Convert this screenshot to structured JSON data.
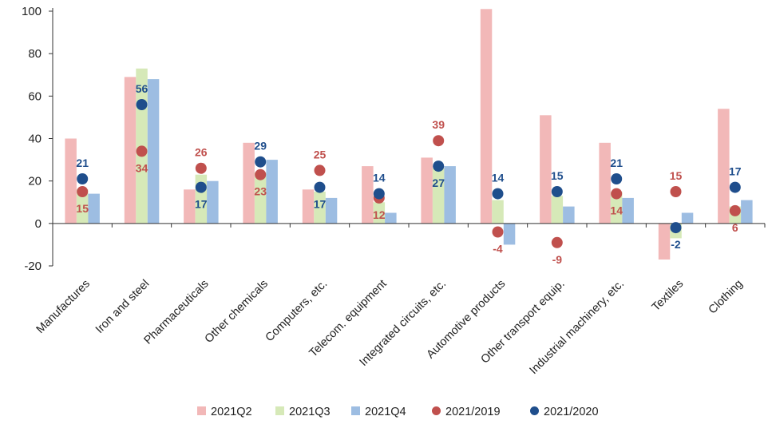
{
  "chart_data": {
    "type": "bar",
    "categories": [
      "Manufactures",
      "Iron and steel",
      "Pharmaceuticals",
      "Other chemicals",
      "Computers, etc.",
      "Telecom. equipment",
      "Integrated circuits, etc.",
      "Automotive products",
      "Other transport equip.",
      "Industrial machinery, etc.",
      "Textiles",
      "Clothing"
    ],
    "series": [
      {
        "name": "2021Q2",
        "kind": "bar",
        "color": "#f2b8b8",
        "values": [
          40,
          69,
          16,
          38,
          16,
          27,
          31,
          101,
          51,
          38,
          -17,
          54
        ]
      },
      {
        "name": "2021Q3",
        "kind": "bar",
        "color": "#d6e9b8",
        "values": [
          16,
          73,
          23,
          24,
          15,
          10,
          26,
          11,
          13,
          15,
          -7,
          8
        ]
      },
      {
        "name": "2021Q4",
        "kind": "bar",
        "color": "#9dbde2",
        "values": [
          14,
          68,
          20,
          30,
          12,
          5,
          27,
          -10,
          8,
          12,
          5,
          11
        ]
      },
      {
        "name": "2021/2019",
        "kind": "dot",
        "color": "#c0504d",
        "values": [
          15,
          34,
          26,
          23,
          25,
          12,
          39,
          -4,
          -9,
          14,
          15,
          6
        ]
      },
      {
        "name": "2021/2020",
        "kind": "dot",
        "color": "#1f4e8c",
        "values": [
          21,
          56,
          17,
          29,
          17,
          14,
          27,
          14,
          15,
          21,
          -2,
          17
        ]
      }
    ],
    "ylim": [
      -20,
      100
    ],
    "yticks": [
      "-20",
      "0",
      "20",
      "40",
      "60",
      "80",
      "100"
    ],
    "xlabel": "",
    "ylabel": "",
    "grid": false,
    "legend_position": "bottom",
    "data_labels": {
      "2021/2019": [
        {
          "text": "15",
          "placement": "below"
        },
        {
          "text": "34",
          "placement": "below"
        },
        {
          "text": "26",
          "placement": "above"
        },
        {
          "text": "23",
          "placement": "below"
        },
        {
          "text": "25",
          "placement": "above"
        },
        {
          "text": "12",
          "placement": "below"
        },
        {
          "text": "39",
          "placement": "above"
        },
        {
          "text": "-4",
          "placement": "below"
        },
        {
          "text": "-9",
          "placement": "below"
        },
        {
          "text": "14",
          "placement": "below"
        },
        {
          "text": "15",
          "placement": "above"
        },
        {
          "text": "6",
          "placement": "below"
        }
      ],
      "2021/2020": [
        {
          "text": "21",
          "placement": "above"
        },
        {
          "text": "56",
          "placement": "above"
        },
        {
          "text": "17",
          "placement": "below"
        },
        {
          "text": "29",
          "placement": "above"
        },
        {
          "text": "17",
          "placement": "below"
        },
        {
          "text": "14",
          "placement": "above"
        },
        {
          "text": "27",
          "placement": "below"
        },
        {
          "text": "14",
          "placement": "above"
        },
        {
          "text": "15",
          "placement": "above"
        },
        {
          "text": "21",
          "placement": "above"
        },
        {
          "text": "-2",
          "placement": "below"
        },
        {
          "text": "17",
          "placement": "above"
        }
      ]
    }
  }
}
